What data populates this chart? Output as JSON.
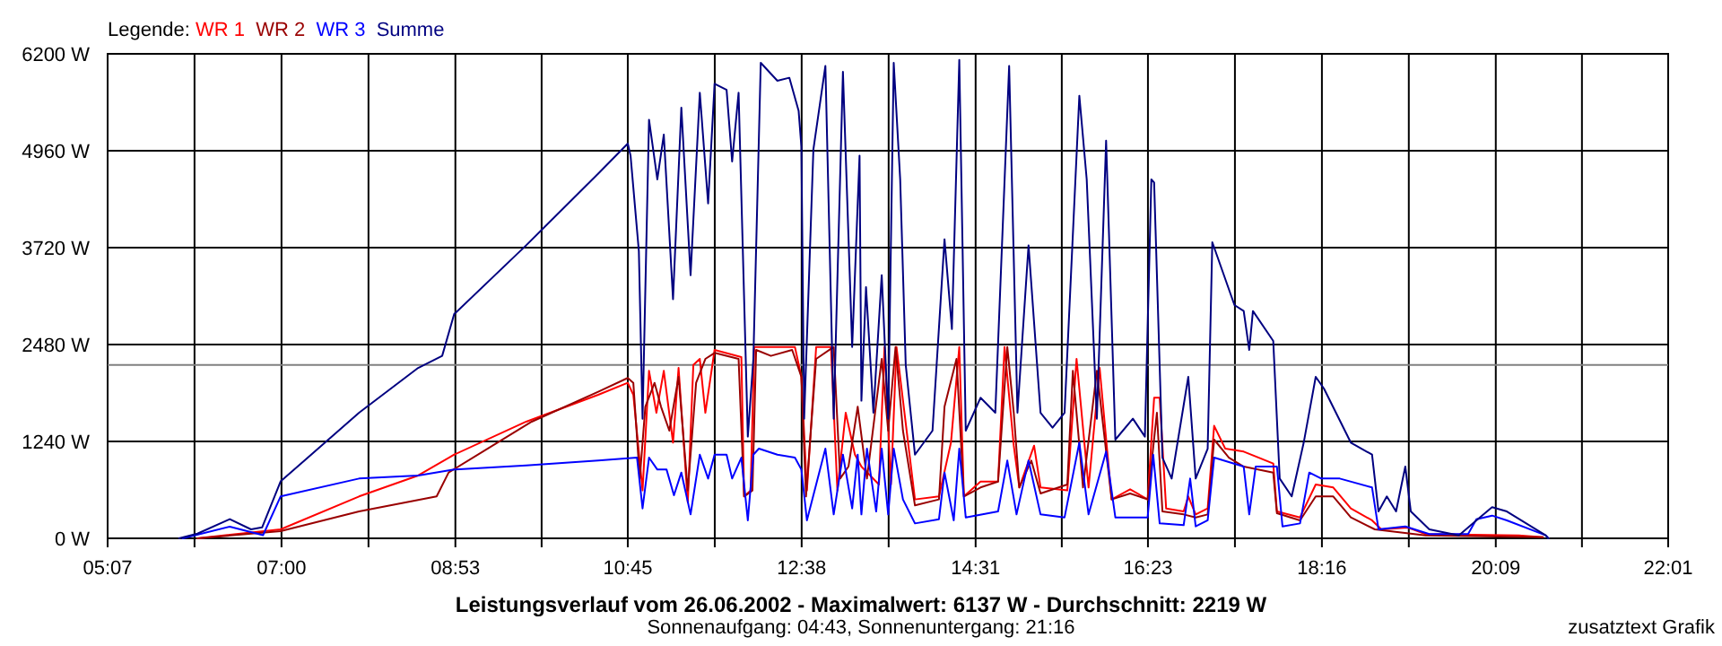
{
  "chart_data": {
    "type": "line",
    "title": "Leistungsverlauf vom 26.06.2002 - Maximalwert: 6137 W - Durchschnitt: 2219 W",
    "subtitle": "Sonnenaufgang: 04:43, Sonnenuntergang: 21:16",
    "annotations": [
      "zusatztext Grafik"
    ],
    "legend_title": "Legende:",
    "legend": "top left",
    "grid": true,
    "line_style": "solid",
    "xlim": [
      5.117,
      22.017
    ],
    "xticks": [
      {
        "value": 5.117,
        "label": "05:07"
      },
      {
        "value": 6.058,
        "label": null
      },
      {
        "value": 7.0,
        "label": "07:00"
      },
      {
        "value": 7.942,
        "label": null
      },
      {
        "value": 8.883,
        "label": "08:53"
      },
      {
        "value": 9.817,
        "label": null
      },
      {
        "value": 10.75,
        "label": "10:45"
      },
      {
        "value": 11.692,
        "label": null
      },
      {
        "value": 12.633,
        "label": "12:38"
      },
      {
        "value": 13.575,
        "label": null
      },
      {
        "value": 14.517,
        "label": "14:31"
      },
      {
        "value": 15.45,
        "label": null
      },
      {
        "value": 16.383,
        "label": "16:23"
      },
      {
        "value": 17.325,
        "label": null
      },
      {
        "value": 18.267,
        "label": "18:16"
      },
      {
        "value": 19.208,
        "label": null
      },
      {
        "value": 20.15,
        "label": "20:09"
      },
      {
        "value": 21.083,
        "label": null
      },
      {
        "value": 22.017,
        "label": "22:01"
      }
    ],
    "ylim": [
      0,
      6200
    ],
    "yticks": [
      {
        "value": 0,
        "label": "0 W"
      },
      {
        "value": 1240,
        "label": "1240 W"
      },
      {
        "value": 2480,
        "label": "2480 W"
      },
      {
        "value": 3720,
        "label": "3720 W"
      },
      {
        "value": 4960,
        "label": "4960 W"
      },
      {
        "value": 6200,
        "label": "6200 W"
      }
    ],
    "ref_lines": [
      {
        "axis": "y",
        "value": 2219,
        "label": null,
        "color": "#808080"
      }
    ],
    "series": [
      {
        "name": "WR 1",
        "color": "#ff0000",
        "x": [
          6.09,
          6.99,
          7.84,
          8.48,
          8.87,
          9.65,
          10.43,
          10.75,
          10.81,
          10.91,
          10.98,
          11.06,
          11.14,
          11.24,
          11.3,
          11.4,
          11.46,
          11.53,
          11.59,
          11.69,
          11.98,
          12.01,
          12.08,
          12.12,
          12.56,
          12.63,
          12.69,
          12.79,
          12.95,
          13.02,
          13.11,
          13.21,
          13.28,
          13.47,
          13.53,
          13.6,
          13.66,
          13.86,
          14.12,
          14.25,
          14.34,
          14.39,
          14.57,
          14.76,
          14.83,
          14.93,
          14.99,
          15.15,
          15.22,
          15.51,
          15.61,
          15.74,
          15.86,
          15.99,
          16.19,
          16.38,
          16.45,
          16.51,
          16.58,
          16.77,
          16.82,
          16.9,
          17.03,
          17.1,
          17.22,
          17.42,
          17.74,
          17.78,
          18.03,
          18.2,
          18.39,
          18.58,
          18.81,
          18.91,
          19.2,
          19.39,
          20.4,
          20.66
        ],
        "values": [
          0,
          115,
          536,
          804,
          1071,
          1493,
          1837,
          1990,
          1837,
          613,
          2143,
          1607,
          2143,
          1225,
          2181,
          459,
          2220,
          2296,
          1607,
          2411,
          2319,
          536,
          613,
          2449,
          2449,
          2067,
          613,
          2449,
          2449,
          613,
          1607,
          1071,
          918,
          689,
          2449,
          689,
          2449,
          498,
          536,
          1225,
          2449,
          536,
          727,
          727,
          2449,
          1186,
          651,
          1186,
          651,
          613,
          2296,
          651,
          2181,
          498,
          628,
          498,
          1799,
          1799,
          383,
          344,
          536,
          306,
          383,
          1440,
          1148,
          1110,
          957,
          344,
          268,
          689,
          651,
          383,
          230,
          115,
          138,
          54,
          38,
          15
        ]
      },
      {
        "name": "WR 2",
        "color": "#990000",
        "x": [
          6.09,
          6.99,
          7.84,
          8.68,
          8.81,
          9.71,
          10.43,
          10.75,
          10.81,
          10.88,
          10.94,
          11.04,
          11.11,
          11.2,
          11.3,
          11.4,
          11.49,
          11.59,
          11.69,
          11.95,
          12.01,
          12.1,
          12.14,
          12.3,
          12.53,
          12.63,
          12.68,
          12.79,
          12.98,
          13.05,
          13.14,
          13.24,
          13.34,
          13.5,
          13.57,
          13.65,
          13.73,
          13.86,
          14.12,
          14.18,
          14.31,
          14.39,
          14.57,
          14.76,
          14.86,
          14.93,
          14.99,
          15.12,
          15.22,
          15.51,
          15.57,
          15.68,
          15.83,
          15.99,
          16.19,
          16.38,
          16.48,
          16.54,
          16.77,
          16.9,
          17.03,
          17.1,
          17.26,
          17.42,
          17.74,
          17.78,
          18.03,
          18.2,
          18.39,
          18.58,
          18.84,
          19.39,
          20.66
        ],
        "values": [
          0,
          92,
          344,
          536,
          842,
          1493,
          1876,
          2052,
          1990,
          765,
          1684,
          1990,
          1684,
          1378,
          2067,
          613,
          1990,
          2296,
          2373,
          2296,
          536,
          613,
          2411,
          2335,
          2411,
          2067,
          536,
          2296,
          2449,
          765,
          918,
          1684,
          765,
          2296,
          1378,
          2449,
          1378,
          421,
          498,
          1684,
          2296,
          536,
          651,
          727,
          2449,
          1607,
          651,
          995,
          574,
          689,
          2143,
          651,
          2143,
          498,
          574,
          498,
          1607,
          344,
          306,
          268,
          306,
          1263,
          1033,
          918,
          842,
          321,
          230,
          536,
          536,
          268,
          115,
          38,
          15
        ]
      },
      {
        "name": "WR 3",
        "color": "#0000ff",
        "x": [
          5.93,
          6.44,
          6.8,
          6.99,
          7.84,
          8.48,
          8.87,
          9.65,
          10.43,
          10.85,
          10.91,
          10.98,
          11.07,
          11.17,
          11.25,
          11.33,
          11.43,
          11.53,
          11.62,
          11.69,
          11.82,
          11.88,
          11.98,
          12.05,
          12.11,
          12.17,
          12.37,
          12.56,
          12.63,
          12.69,
          12.89,
          12.98,
          13.08,
          13.18,
          13.24,
          13.28,
          13.34,
          13.44,
          13.5,
          13.57,
          13.63,
          13.73,
          13.86,
          14.12,
          14.18,
          14.28,
          14.34,
          14.41,
          14.76,
          14.86,
          14.96,
          15.09,
          15.22,
          15.48,
          15.64,
          15.74,
          15.93,
          16.03,
          16.38,
          16.44,
          16.51,
          16.77,
          16.84,
          16.9,
          17.03,
          17.1,
          17.42,
          17.48,
          17.55,
          17.78,
          17.84,
          18.03,
          18.13,
          18.26,
          18.46,
          18.81,
          18.88,
          19.17,
          19.43,
          19.85,
          19.94,
          20.11,
          20.27,
          20.69,
          20.72
        ],
        "values": [
          0,
          150,
          40,
          536,
          765,
          804,
          880,
          934,
          995,
          1033,
          383,
          1033,
          880,
          880,
          551,
          842,
          306,
          1071,
          765,
          1071,
          1071,
          765,
          1033,
          230,
          1071,
          1148,
          1071,
          1033,
          880,
          230,
          1148,
          306,
          1071,
          383,
          1071,
          306,
          1148,
          344,
          1148,
          306,
          1148,
          498,
          191,
          245,
          842,
          230,
          1148,
          268,
          344,
          995,
          306,
          995,
          306,
          268,
          1225,
          306,
          1110,
          268,
          268,
          1071,
          191,
          168,
          765,
          153,
          230,
          1033,
          918,
          306,
          918,
          918,
          153,
          191,
          842,
          765,
          765,
          651,
          115,
          153,
          54,
          54,
          245,
          291,
          230,
          38,
          0
        ]
      },
      {
        "name": "Summe",
        "color": "#000080",
        "x": [
          5.89,
          6.09,
          6.44,
          6.67,
          6.79,
          6.99,
          7.84,
          8.48,
          8.74,
          8.87,
          9.65,
          10.43,
          10.75,
          10.78,
          10.87,
          10.91,
          10.98,
          11.07,
          11.14,
          11.24,
          11.33,
          11.43,
          11.53,
          11.62,
          11.69,
          11.82,
          11.88,
          11.95,
          12.05,
          12.11,
          12.19,
          12.37,
          12.5,
          12.6,
          12.63,
          12.66,
          12.76,
          12.89,
          12.98,
          13.08,
          13.18,
          13.26,
          13.28,
          13.33,
          13.41,
          13.5,
          13.57,
          13.63,
          13.7,
          13.76,
          13.86,
          14.05,
          14.18,
          14.26,
          14.34,
          14.41,
          14.57,
          14.73,
          14.88,
          14.97,
          15.09,
          15.22,
          15.35,
          15.48,
          15.64,
          15.72,
          15.83,
          15.93,
          16.03,
          16.22,
          16.35,
          16.42,
          16.45,
          16.54,
          16.64,
          16.82,
          16.9,
          17.03,
          17.08,
          17.32,
          17.42,
          17.48,
          17.52,
          17.74,
          17.81,
          17.94,
          18.07,
          18.2,
          18.29,
          18.58,
          18.81,
          18.88,
          18.97,
          19.07,
          19.17,
          19.23,
          19.43,
          19.75,
          19.94,
          20.11,
          20.27,
          20.69,
          20.72
        ],
        "values": [
          0,
          60,
          246,
          115,
          140,
          728,
          1607,
          2181,
          2335,
          2870,
          3750,
          4668,
          5052,
          4898,
          3674,
          1531,
          5357,
          4593,
          5166,
          3061,
          5511,
          3368,
          5702,
          4286,
          5817,
          5740,
          4822,
          5702,
          1302,
          2296,
          6085,
          5855,
          5894,
          5472,
          5013,
          1531,
          4975,
          6046,
          1531,
          5970,
          2449,
          4898,
          1761,
          3215,
          1607,
          3368,
          1531,
          6085,
          4593,
          2220,
          1071,
          1378,
          3827,
          2679,
          6123,
          1378,
          1799,
          1607,
          6046,
          1607,
          3750,
          1607,
          1416,
          1607,
          5664,
          4593,
          1531,
          5090,
          1263,
          1531,
          1302,
          4593,
          4554,
          1033,
          765,
          2067,
          765,
          1148,
          3789,
          2985,
          2909,
          2411,
          2909,
          2526,
          765,
          536,
          1225,
          2067,
          1914,
          1225,
          1071,
          344,
          536,
          344,
          918,
          344,
          115,
          38,
          230,
          398,
          344,
          38,
          0
        ]
      }
    ]
  }
}
